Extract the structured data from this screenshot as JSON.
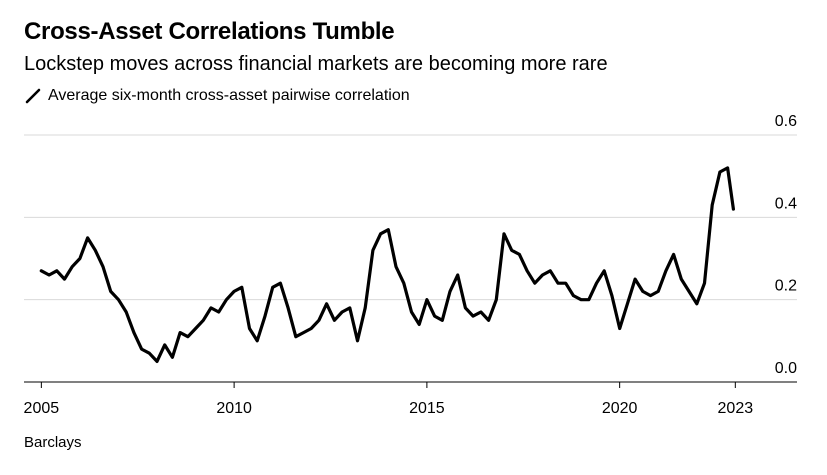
{
  "header": {
    "title": "Cross-Asset Correlations Tumble",
    "subtitle": "Lockstep moves across financial markets are becoming more rare"
  },
  "source": "Barclays",
  "chart_data": {
    "type": "line",
    "series": [
      {
        "name": "Average six-month cross-asset pairwise correlation",
        "color": "#000000",
        "x": [
          2005.0,
          2005.2,
          2005.4,
          2005.6,
          2005.8,
          2006.0,
          2006.2,
          2006.4,
          2006.6,
          2006.8,
          2007.0,
          2007.2,
          2007.4,
          2007.6,
          2007.8,
          2008.0,
          2008.2,
          2008.4,
          2008.6,
          2008.8,
          2009.0,
          2009.2,
          2009.4,
          2009.6,
          2009.8,
          2010.0,
          2010.2,
          2010.4,
          2010.6,
          2010.8,
          2011.0,
          2011.2,
          2011.4,
          2011.6,
          2011.8,
          2012.0,
          2012.2,
          2012.4,
          2012.6,
          2012.8,
          2013.0,
          2013.2,
          2013.4,
          2013.6,
          2013.8,
          2014.0,
          2014.2,
          2014.4,
          2014.6,
          2014.8,
          2015.0,
          2015.2,
          2015.4,
          2015.6,
          2015.8,
          2016.0,
          2016.2,
          2016.4,
          2016.6,
          2016.8,
          2017.0,
          2017.2,
          2017.4,
          2017.6,
          2017.8,
          2018.0,
          2018.2,
          2018.4,
          2018.6,
          2018.8,
          2019.0,
          2019.2,
          2019.4,
          2019.6,
          2019.8,
          2020.0,
          2020.2,
          2020.4,
          2020.6,
          2020.8,
          2021.0,
          2021.2,
          2021.4,
          2021.6,
          2021.8,
          2022.0,
          2022.2,
          2022.4,
          2022.6,
          2022.8,
          2022.95
        ],
        "values": [
          0.27,
          0.26,
          0.27,
          0.25,
          0.28,
          0.3,
          0.35,
          0.32,
          0.28,
          0.22,
          0.2,
          0.17,
          0.12,
          0.08,
          0.07,
          0.05,
          0.09,
          0.06,
          0.12,
          0.11,
          0.13,
          0.15,
          0.18,
          0.17,
          0.2,
          0.22,
          0.23,
          0.13,
          0.1,
          0.16,
          0.23,
          0.24,
          0.18,
          0.11,
          0.12,
          0.13,
          0.15,
          0.19,
          0.15,
          0.17,
          0.18,
          0.1,
          0.18,
          0.32,
          0.36,
          0.37,
          0.28,
          0.24,
          0.17,
          0.14,
          0.2,
          0.16,
          0.15,
          0.22,
          0.26,
          0.18,
          0.16,
          0.17,
          0.15,
          0.2,
          0.36,
          0.32,
          0.31,
          0.27,
          0.24,
          0.26,
          0.27,
          0.24,
          0.24,
          0.21,
          0.2,
          0.2,
          0.24,
          0.27,
          0.21,
          0.13,
          0.19,
          0.25,
          0.22,
          0.21,
          0.22,
          0.27,
          0.31,
          0.25,
          0.22,
          0.19,
          0.24,
          0.43,
          0.51,
          0.52,
          0.42
        ]
      }
    ],
    "yticks": [
      0.0,
      0.2,
      0.4,
      0.6
    ],
    "ytick_labels": [
      "0.0",
      "0.2",
      "0.4",
      "0.6"
    ],
    "xticks": [
      2005,
      2010,
      2015,
      2020,
      2023
    ],
    "xtick_labels": [
      "2005",
      "2010",
      "2015",
      "2020",
      "2023"
    ],
    "ylim": [
      0.0,
      0.6
    ],
    "xlim": [
      2004.55,
      2024.6
    ],
    "grid": true
  }
}
